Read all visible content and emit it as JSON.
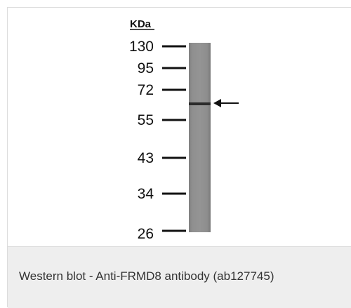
{
  "blot": {
    "unit_label": "KDa",
    "markers": [
      {
        "label": "130",
        "kda": 130
      },
      {
        "label": "95",
        "kda": 95
      },
      {
        "label": "72",
        "kda": 72
      },
      {
        "label": "55",
        "kda": 55
      },
      {
        "label": "43",
        "kda": 43
      },
      {
        "label": "34",
        "kda": 34
      },
      {
        "label": "26",
        "kda": 26
      }
    ],
    "band_near_marker": "72",
    "arrow_glyph": "←"
  },
  "caption": {
    "text": "Western blot - Anti-FRMD8 antibody (ab127745)"
  },
  "colors": {
    "lane": "#8c8c8c",
    "band": "#2b2b2b",
    "ink": "#111111",
    "caption_bg": "#eeeeee"
  }
}
